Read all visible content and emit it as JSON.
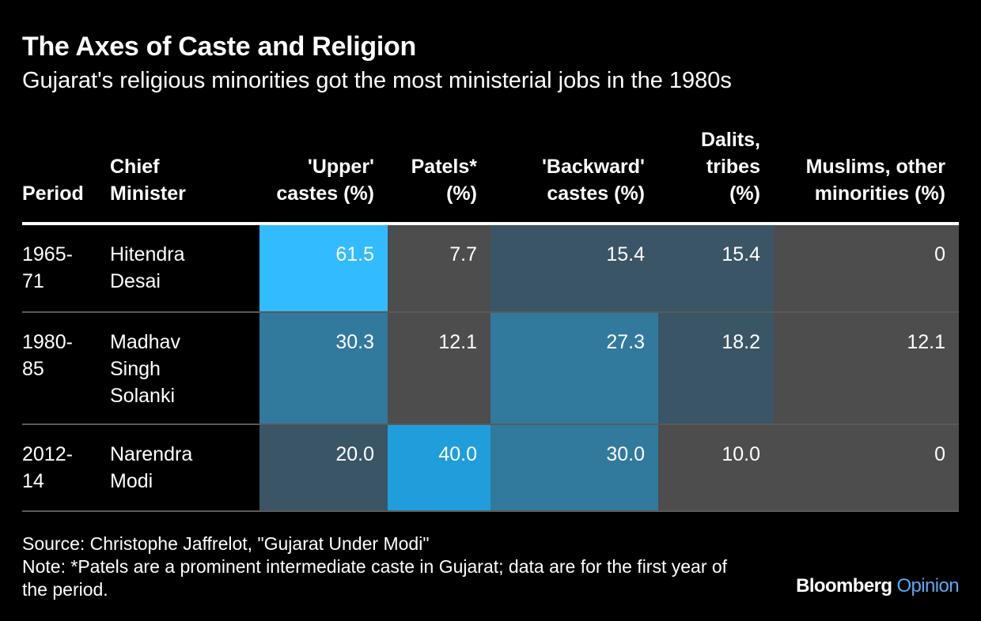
{
  "title": "The Axes of Caste and Religion",
  "subtitle": "Gujarat's religious minorities got the most ministerial jobs in the 1980s",
  "source": "Source: Christophe Jaffrelot, \"Gujarat Under Modi\"",
  "note": "Note: *Patels are a prominent intermediate caste in Gujarat; data are for the first year of the period.",
  "logo": {
    "brand": "Bloomberg",
    "section": "Opinion"
  },
  "columns": [
    "Period",
    "Chief Minister",
    "'Upper' castes (%)",
    "Patels* (%)",
    "'Backward' castes (%)",
    "Dalits, tribes (%)",
    "Muslims, other minorities (%)"
  ],
  "colors": {
    "scale": [
      "#4d4d4d",
      "#3a5566",
      "#32799e",
      "#1f9edb",
      "#33bbff"
    ]
  },
  "chart_data": {
    "type": "table",
    "title": "The Axes of Caste and Religion",
    "subtitle": "Gujarat's religious minorities got the most ministerial jobs in the 1980s",
    "rows": [
      {
        "period": "1965-71",
        "chief_minister": "Hitendra Desai",
        "values": [
          "61.5",
          "7.7",
          "15.4",
          "15.4",
          "0"
        ]
      },
      {
        "period": "1980-85",
        "chief_minister": "Madhav Singh Solanki",
        "values": [
          "30.3",
          "12.1",
          "27.3",
          "18.2",
          "12.1"
        ]
      },
      {
        "period": "2012-14",
        "chief_minister": "Narendra Modi",
        "values": [
          "20.0",
          "40.0",
          "30.0",
          "10.0",
          "0"
        ]
      }
    ]
  }
}
